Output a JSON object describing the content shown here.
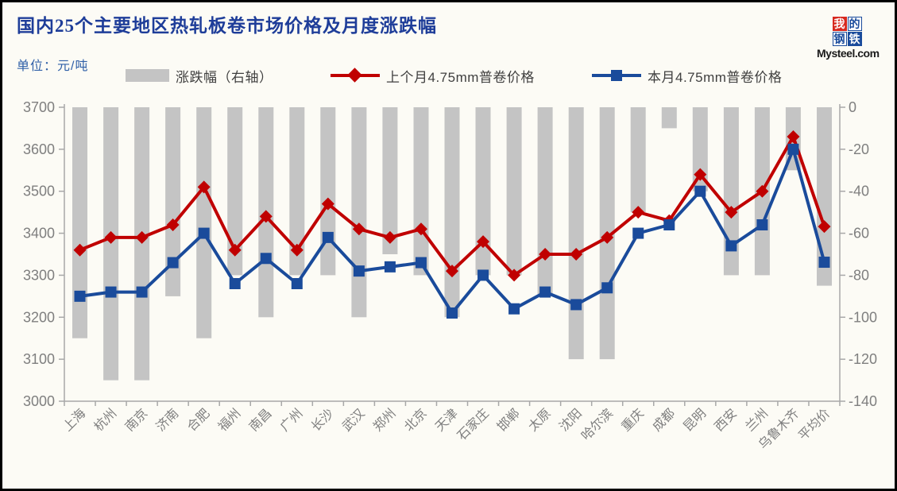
{
  "header": {
    "title": "国内25个主要地区热轧板卷市场价格及月度涨跌幅",
    "unit": "单位：元/吨"
  },
  "logo": {
    "chars": [
      "我",
      "的",
      "钢",
      "铁"
    ],
    "site": "Mysteel.com",
    "red": "#D7281E",
    "blue": "#1A4B9B"
  },
  "legend": {
    "items": [
      {
        "label": "涨跌幅（右轴）",
        "marker": "bar",
        "color": "#C4C4C4"
      },
      {
        "label": "上个月4.75mm普卷价格",
        "marker": "line-diamond",
        "color": "#C00000"
      },
      {
        "label": "本月4.75mm普卷价格",
        "marker": "line-square",
        "color": "#1A4B9B"
      }
    ]
  },
  "colors": {
    "last_month_red": "#C00000",
    "this_month_blue": "#1A4B9B",
    "bar_gray": "#C4C4C4",
    "axis_line": "#A8A8A8",
    "axis_text": "#7F7F7F",
    "title_blue": "#1E3D99"
  },
  "chart_data": {
    "type": "combo-bar-line",
    "categories": [
      "上海",
      "杭州",
      "南京",
      "济南",
      "合肥",
      "福州",
      "南昌",
      "广州",
      "长沙",
      "武汉",
      "郑州",
      "北京",
      "天津",
      "石家庄",
      "邯郸",
      "太原",
      "沈阳",
      "哈尔滨",
      "重庆",
      "成都",
      "昆明",
      "西安",
      "兰州",
      "乌鲁木齐",
      "平均价"
    ],
    "series": [
      {
        "name": "涨跌幅（右轴）",
        "type": "bar",
        "axis": "right",
        "color": "#C4C4C4",
        "values": [
          -110,
          -130,
          -130,
          -90,
          -110,
          -80,
          -100,
          -80,
          -80,
          -100,
          -70,
          -80,
          -100,
          -80,
          -80,
          -90,
          -120,
          -120,
          -50,
          -10,
          -40,
          -80,
          -80,
          -30,
          -85
        ]
      },
      {
        "name": "上个月4.75mm普卷价格",
        "type": "line",
        "marker": "diamond",
        "axis": "left",
        "color": "#C00000",
        "values": [
          3360,
          3390,
          3390,
          3420,
          3510,
          3360,
          3440,
          3360,
          3470,
          3410,
          3390,
          3410,
          3310,
          3380,
          3300,
          3350,
          3350,
          3390,
          3450,
          3430,
          3540,
          3450,
          3500,
          3630,
          3416
        ]
      },
      {
        "name": "本月4.75mm普卷价格",
        "type": "line",
        "marker": "square",
        "axis": "left",
        "color": "#1A4B9B",
        "values": [
          3250,
          3260,
          3260,
          3330,
          3400,
          3280,
          3340,
          3280,
          3390,
          3310,
          3320,
          3330,
          3210,
          3300,
          3220,
          3260,
          3230,
          3270,
          3400,
          3420,
          3500,
          3370,
          3420,
          3600,
          3331
        ]
      }
    ],
    "left_axis": {
      "min": 3000,
      "max": 3700,
      "ticks": [
        3700,
        3600,
        3500,
        3400,
        3300,
        3200,
        3100,
        3000
      ]
    },
    "right_axis": {
      "min": -140,
      "max": 0,
      "ticks": [
        0,
        -20,
        -40,
        -60,
        -80,
        -100,
        -120,
        -140
      ]
    },
    "grid": false,
    "legend_position": "top"
  }
}
